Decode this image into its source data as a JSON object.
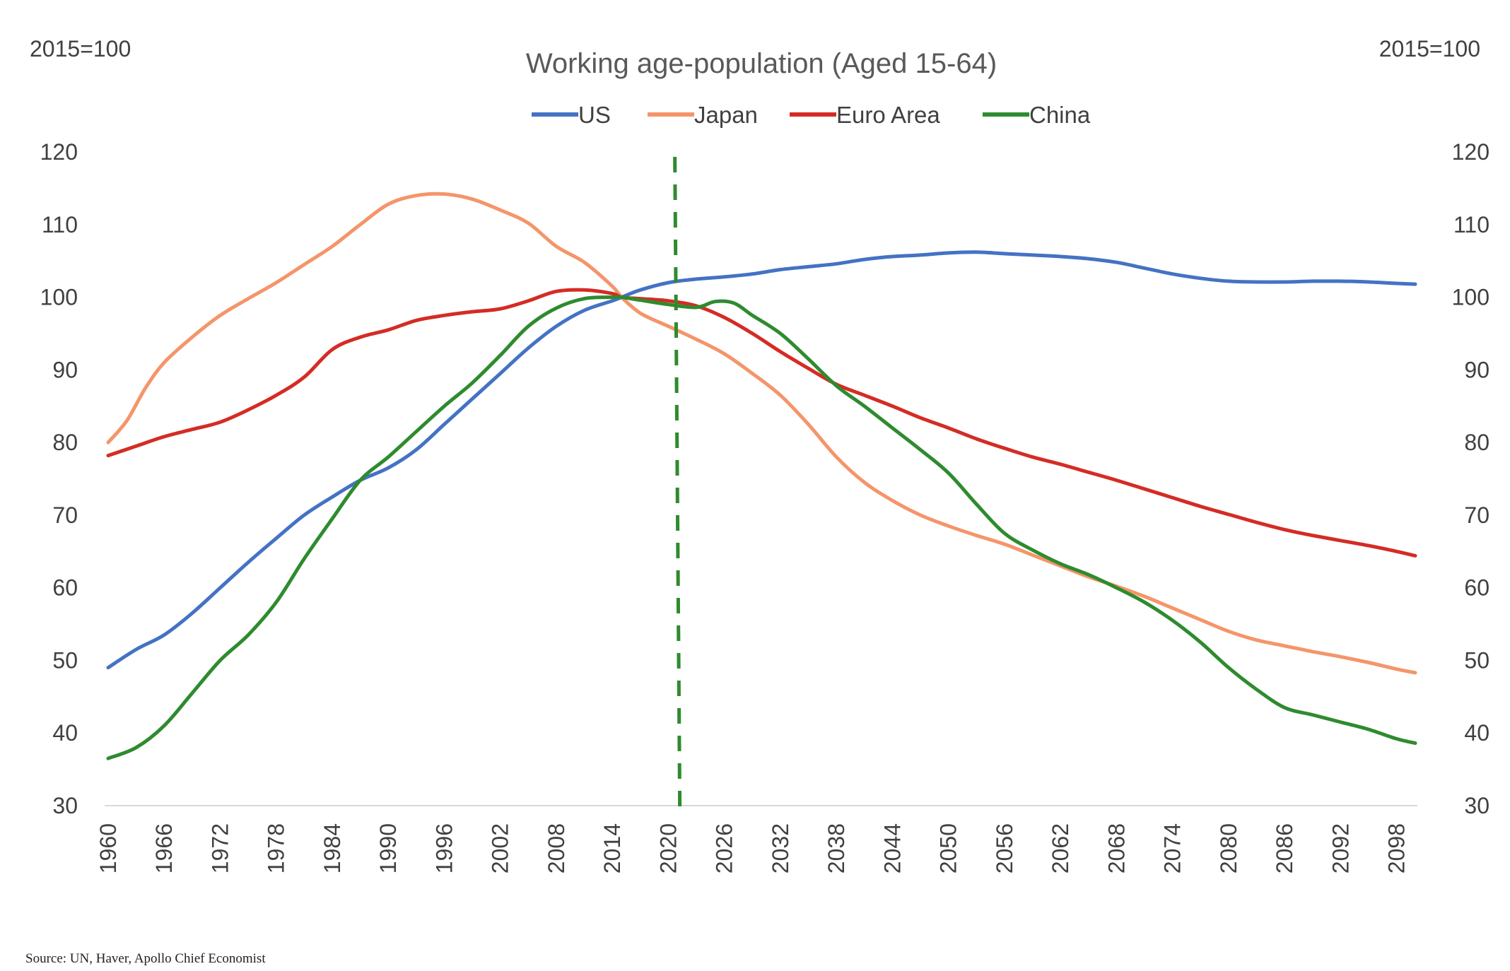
{
  "chart_data": {
    "type": "line",
    "title": "Working age-population (Aged 15-64)",
    "left_unit_label": "2015=100",
    "right_unit_label": "2015=100",
    "ylim": [
      30,
      120
    ],
    "y_ticks": [
      30,
      40,
      50,
      60,
      70,
      80,
      90,
      100,
      110,
      120
    ],
    "xlim": [
      1960,
      2100
    ],
    "x_tick_labels": [
      "1960",
      "1966",
      "1972",
      "1978",
      "1984",
      "1990",
      "1996",
      "2002",
      "2008",
      "2014",
      "2020",
      "2026",
      "2032",
      "2038",
      "2044",
      "2050",
      "2056",
      "2062",
      "2068",
      "2074",
      "2080",
      "2086",
      "2092",
      "2098"
    ],
    "vertical_marker": {
      "x": 2021,
      "color": "#2e8b2e",
      "style": "dashed"
    },
    "source": "Source: UN, Haver, Apollo Chief Economist",
    "series": [
      {
        "name": "US",
        "color": "#4472c4",
        "x": [
          1960,
          1963,
          1966,
          1969,
          1972,
          1975,
          1978,
          1981,
          1984,
          1987,
          1990,
          1993,
          1996,
          1999,
          2002,
          2005,
          2008,
          2011,
          2014,
          2015,
          2017,
          2020,
          2023,
          2026,
          2029,
          2032,
          2035,
          2038,
          2041,
          2044,
          2047,
          2050,
          2053,
          2056,
          2059,
          2062,
          2065,
          2068,
          2071,
          2074,
          2077,
          2080,
          2083,
          2086,
          2089,
          2092,
          2095,
          2098,
          2100
        ],
        "y": [
          49,
          51.5,
          53.5,
          56.5,
          60,
          63.5,
          66.8,
          70,
          72.5,
          74.8,
          76.5,
          79,
          82.5,
          86,
          89.5,
          93,
          96,
          98.2,
          99.5,
          100,
          101,
          102,
          102.5,
          102.8,
          103.2,
          103.8,
          104.2,
          104.6,
          105.2,
          105.6,
          105.8,
          106.1,
          106.2,
          106.0,
          105.8,
          105.6,
          105.3,
          104.8,
          104,
          103.2,
          102.6,
          102.2,
          102.1,
          102.1,
          102.2,
          102.2,
          102.1,
          101.9,
          101.8
        ]
      },
      {
        "name": "Japan",
        "color": "#f4956a",
        "x": [
          1960,
          1962,
          1964,
          1966,
          1969,
          1972,
          1975,
          1978,
          1981,
          1984,
          1987,
          1990,
          1993,
          1996,
          1999,
          2002,
          2005,
          2008,
          2011,
          2014,
          2015,
          2017,
          2020,
          2023,
          2026,
          2029,
          2032,
          2035,
          2038,
          2041,
          2044,
          2047,
          2050,
          2053,
          2056,
          2059,
          2062,
          2065,
          2068,
          2071,
          2074,
          2077,
          2080,
          2083,
          2086,
          2089,
          2092,
          2095,
          2098,
          2100
        ],
        "y": [
          80,
          83,
          87.5,
          91,
          94.5,
          97.5,
          99.8,
          102,
          104.5,
          107,
          110,
          112.8,
          114,
          114.2,
          113.5,
          112,
          110.2,
          107,
          104.8,
          101.5,
          100,
          97.8,
          96,
          94.2,
          92.2,
          89.5,
          86.5,
          82.5,
          78,
          74.5,
          72,
          70,
          68.5,
          67.2,
          66,
          64.5,
          63,
          61.5,
          60.2,
          58.8,
          57.2,
          55.6,
          54,
          52.8,
          52,
          51.2,
          50.5,
          49.7,
          48.8,
          48.3
        ]
      },
      {
        "name": "Euro Area",
        "color": "#d42c24",
        "x": [
          1960,
          1963,
          1966,
          1969,
          1972,
          1975,
          1978,
          1981,
          1984,
          1987,
          1990,
          1993,
          1996,
          1999,
          2002,
          2005,
          2008,
          2011,
          2014,
          2015,
          2017,
          2020,
          2023,
          2026,
          2029,
          2032,
          2035,
          2038,
          2041,
          2044,
          2047,
          2050,
          2053,
          2056,
          2059,
          2062,
          2065,
          2068,
          2071,
          2074,
          2077,
          2080,
          2083,
          2086,
          2089,
          2092,
          2095,
          2098,
          2100
        ],
        "y": [
          78.2,
          79.5,
          80.8,
          81.8,
          82.8,
          84.5,
          86.5,
          89,
          92.8,
          94.5,
          95.5,
          96.8,
          97.5,
          98,
          98.4,
          99.5,
          100.8,
          101,
          100.5,
          100,
          99.8,
          99.5,
          98.8,
          97.2,
          95,
          92.5,
          90.2,
          88,
          86.5,
          85,
          83.4,
          82,
          80.5,
          79.2,
          78,
          77,
          75.9,
          74.8,
          73.6,
          72.4,
          71.2,
          70.1,
          69,
          68,
          67.2,
          66.5,
          65.8,
          65,
          64.4
        ]
      },
      {
        "name": "China",
        "color": "#2e8b2e",
        "x": [
          1960,
          1963,
          1966,
          1969,
          1972,
          1975,
          1978,
          1981,
          1984,
          1987,
          1990,
          1993,
          1996,
          1999,
          2002,
          2005,
          2008,
          2011,
          2014,
          2015,
          2017,
          2020,
          2023,
          2025,
          2027,
          2029,
          2032,
          2035,
          2038,
          2041,
          2044,
          2047,
          2050,
          2053,
          2056,
          2059,
          2062,
          2065,
          2068,
          2071,
          2074,
          2077,
          2080,
          2083,
          2086,
          2089,
          2092,
          2095,
          2098,
          2100
        ],
        "y": [
          36.5,
          38,
          41,
          45.5,
          50,
          53.5,
          58,
          64,
          69.5,
          74.8,
          78,
          81.5,
          85,
          88.2,
          92,
          96,
          98.5,
          99.8,
          100,
          100,
          99.6,
          99,
          98.6,
          99.4,
          99.2,
          97.5,
          95,
          91.5,
          87.8,
          85,
          82,
          79,
          75.8,
          71.5,
          67.5,
          65.2,
          63.3,
          61.8,
          60,
          58,
          55.5,
          52.5,
          49,
          46,
          43.5,
          42.5,
          41.5,
          40.5,
          39.2,
          38.6
        ]
      }
    ]
  }
}
